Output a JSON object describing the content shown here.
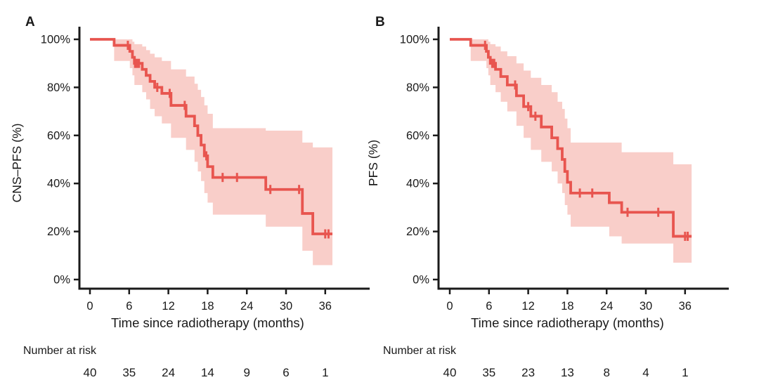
{
  "figure": {
    "background": "#ffffff",
    "line_color": "#e8554f",
    "band_color": "#f9cec9",
    "axis_color": "#1a1a1a",
    "text_color": "#1a1a1a"
  },
  "chart_data": [
    {
      "type": "line",
      "subtype": "kaplan-meier-step",
      "panel_label": "A",
      "title": "",
      "ylabel": "CNS–PFS (%)",
      "xlabel": "Time since radiotherapy (months)",
      "xlim": [
        0,
        42
      ],
      "ylim": [
        0,
        100
      ],
      "grid": false,
      "legend": "none",
      "xticks": [
        0,
        6,
        12,
        18,
        24,
        30,
        36
      ],
      "xtick_labels": [
        "0",
        "6",
        "12",
        "18",
        "24",
        "30",
        "36"
      ],
      "yticks": [
        0,
        20,
        40,
        60,
        80,
        100
      ],
      "ytick_labels": [
        "0%",
        "20%",
        "40%",
        "60%",
        "80%",
        "100%"
      ],
      "end_time": 37.1,
      "steps": [
        [
          0,
          100
        ],
        [
          3.7,
          97.5
        ],
        [
          6.1,
          95
        ],
        [
          6.5,
          92.5
        ],
        [
          6.8,
          90
        ],
        [
          8.0,
          87.5
        ],
        [
          8.6,
          85
        ],
        [
          9.2,
          82.5
        ],
        [
          9.9,
          80
        ],
        [
          11.0,
          77.5
        ],
        [
          12.4,
          72.5
        ],
        [
          14.7,
          68
        ],
        [
          16.0,
          64
        ],
        [
          16.5,
          60
        ],
        [
          17.0,
          56
        ],
        [
          17.5,
          51.5
        ],
        [
          18.0,
          47
        ],
        [
          18.8,
          42.5
        ],
        [
          26.9,
          37.5
        ],
        [
          32.5,
          27.5
        ],
        [
          34.1,
          19
        ]
      ],
      "band": [
        [
          0,
          100,
          100
        ],
        [
          3.7,
          91,
          100
        ],
        [
          6.1,
          88,
          100
        ],
        [
          6.5,
          85,
          99
        ],
        [
          6.8,
          81,
          98
        ],
        [
          8.0,
          78,
          97
        ],
        [
          8.6,
          75,
          95.5
        ],
        [
          9.2,
          71,
          94
        ],
        [
          9.9,
          68,
          92.5
        ],
        [
          11.0,
          65,
          91
        ],
        [
          12.4,
          59,
          87.5
        ],
        [
          14.7,
          54,
          84.5
        ],
        [
          16.0,
          49,
          81.5
        ],
        [
          16.5,
          45,
          79
        ],
        [
          17.0,
          41,
          76
        ],
        [
          17.5,
          36,
          72.5
        ],
        [
          18.0,
          32,
          69
        ],
        [
          18.8,
          27,
          63
        ],
        [
          26.9,
          22,
          62
        ],
        [
          32.5,
          12,
          57
        ],
        [
          34.1,
          6,
          55
        ]
      ],
      "censors": [
        [
          5.8,
          97.5
        ],
        [
          6.9,
          90
        ],
        [
          7.2,
          90
        ],
        [
          7.5,
          90
        ],
        [
          10.3,
          80
        ],
        [
          12.2,
          77.5
        ],
        [
          14.5,
          72.5
        ],
        [
          17.8,
          51.5
        ],
        [
          20.3,
          42.5
        ],
        [
          22.5,
          42.5
        ],
        [
          27.6,
          37.5
        ],
        [
          32.0,
          37.5
        ],
        [
          36.0,
          19
        ],
        [
          36.5,
          19
        ]
      ],
      "risk_label": "Number at risk",
      "risk_times": [
        0,
        6,
        12,
        18,
        24,
        30,
        36
      ],
      "risk_counts": [
        "40",
        "35",
        "24",
        "14",
        "9",
        "6",
        "1"
      ]
    },
    {
      "type": "line",
      "subtype": "kaplan-meier-step",
      "panel_label": "B",
      "title": "",
      "ylabel": "PFS (%)",
      "xlabel": "Time since radiotherapy (months)",
      "xlim": [
        0,
        42
      ],
      "ylim": [
        0,
        100
      ],
      "grid": false,
      "legend": "none",
      "xticks": [
        0,
        6,
        12,
        18,
        24,
        30,
        36
      ],
      "xtick_labels": [
        "0",
        "6",
        "12",
        "18",
        "24",
        "30",
        "36"
      ],
      "yticks": [
        0,
        20,
        40,
        60,
        80,
        100
      ],
      "ytick_labels": [
        "0%",
        "20%",
        "40%",
        "60%",
        "80%",
        "100%"
      ],
      "end_time": 37.0,
      "steps": [
        [
          0,
          100
        ],
        [
          3.2,
          97.5
        ],
        [
          5.6,
          95
        ],
        [
          5.9,
          92.5
        ],
        [
          6.2,
          90
        ],
        [
          7.0,
          87.5
        ],
        [
          7.8,
          84.5
        ],
        [
          8.8,
          81
        ],
        [
          10.2,
          76.5
        ],
        [
          11.3,
          72
        ],
        [
          12.4,
          68
        ],
        [
          14.0,
          63.5
        ],
        [
          15.6,
          59
        ],
        [
          16.5,
          54.5
        ],
        [
          17.2,
          50
        ],
        [
          17.6,
          45
        ],
        [
          18.0,
          40.5
        ],
        [
          18.5,
          36
        ],
        [
          24.4,
          32
        ],
        [
          26.3,
          28
        ],
        [
          34.2,
          18
        ]
      ],
      "band": [
        [
          0,
          100,
          100
        ],
        [
          3.2,
          91,
          100
        ],
        [
          5.6,
          88,
          100
        ],
        [
          5.9,
          85,
          99
        ],
        [
          6.2,
          81,
          98
        ],
        [
          7.0,
          78,
          97
        ],
        [
          7.8,
          74,
          95
        ],
        [
          8.8,
          70,
          93
        ],
        [
          10.2,
          64,
          90
        ],
        [
          11.3,
          59,
          87
        ],
        [
          12.4,
          54,
          84
        ],
        [
          14.0,
          49,
          81
        ],
        [
          15.6,
          45,
          78
        ],
        [
          16.5,
          40,
          74
        ],
        [
          17.2,
          36,
          71
        ],
        [
          17.6,
          31,
          67
        ],
        [
          18.0,
          27,
          63
        ],
        [
          18.5,
          22,
          57
        ],
        [
          24.4,
          18,
          57
        ],
        [
          26.3,
          15,
          53
        ],
        [
          34.2,
          7,
          48
        ]
      ],
      "censors": [
        [
          5.4,
          97.5
        ],
        [
          6.5,
          90
        ],
        [
          6.8,
          90
        ],
        [
          10.0,
          81
        ],
        [
          12.0,
          72
        ],
        [
          13.1,
          68
        ],
        [
          19.9,
          36
        ],
        [
          21.8,
          36
        ],
        [
          27.2,
          28
        ],
        [
          31.9,
          28
        ],
        [
          36.0,
          18
        ],
        [
          36.4,
          18
        ]
      ],
      "risk_label": "Number at risk",
      "risk_times": [
        0,
        6,
        12,
        18,
        24,
        30,
        36
      ],
      "risk_counts": [
        "40",
        "35",
        "23",
        "13",
        "8",
        "4",
        "1"
      ]
    }
  ]
}
